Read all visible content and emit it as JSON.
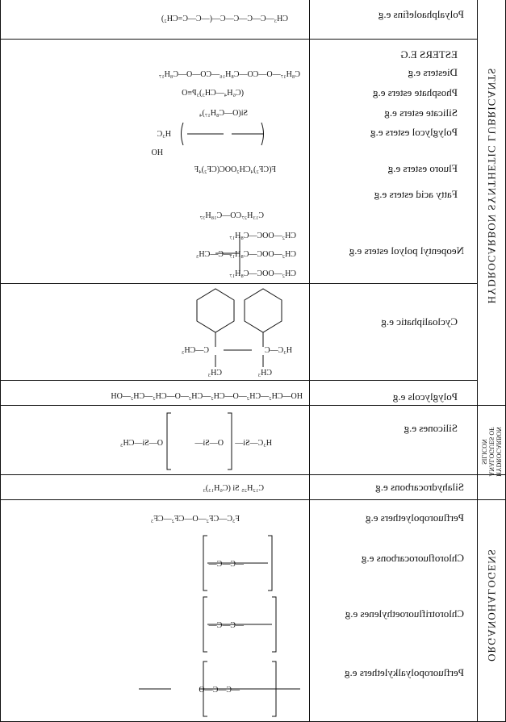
{
  "groups": {
    "hydrocarbon": "HYDROCARBON SYNTHETIC LUBRICANTS",
    "hydrocarbon_analogues": [
      "HYDROCARBON",
      "ANALOGUES OF",
      "SILICON"
    ],
    "organohalogens": "ORGANOHALOGENS"
  },
  "rows": {
    "polyalphaolefins": "Polyalphaolefins e.g",
    "esters_heading": "ESTERS E.G",
    "diesters": "Diesters e.g",
    "phosphate": "Phosphate esters e.g",
    "silicate": "Silicate esters e.g",
    "polyglycol_esters": "Polyglycol esters e.g",
    "fluoro": "Fluoro esters e.g",
    "fatty": "Fatty acid esters e.g",
    "neopentyl": "Neopentyl polyol esters e.g",
    "cycloaliphatic": "Cycloaliphatic e.g",
    "polyglycols": "Polyglycols e.g",
    "silicones": "Silicones e.g",
    "silahydrocarbons": "Silahydrocarbons e.g",
    "perfluoropolyethers": "Perfluoropolyethers e.g",
    "chlorofluorocarbons": "Chlorofluorocarbons e.g",
    "chlorotrifluoroethylenes": "Chlorotrifluoroethylenes e.g",
    "perfluoropolyalkylethers": "Perfluoropolyalkylethers e.g"
  },
  "formulas": {
    "pao": "CH₃—C—C—C—C—(—C—C=CH₂)",
    "diester": "C₈H₁₇—O—CO—C₈H₁₆—CO—O—C₈H₁₇",
    "phosphate": "(C₆H₄—CH₃)₃P≡O",
    "silicate": "Si(O—C₈H₁₇)₄",
    "fluoro": "F(CF₂)₄CH₂OOC(CF₂)₄F",
    "fatty": "C₁₃H₂₇CO—C₁₈H₃₇",
    "polyglycol_chain": "HO—CH₂—CH₂—O—CH₂—CH₂—O—CH₂—CH₂—OH",
    "silahydrocarbon": "C₁₂H₂₅ Si (C₆H₁₃)₃",
    "pfpe": "F₃C—CF₂—O—CF₂—CF₃"
  }
}
